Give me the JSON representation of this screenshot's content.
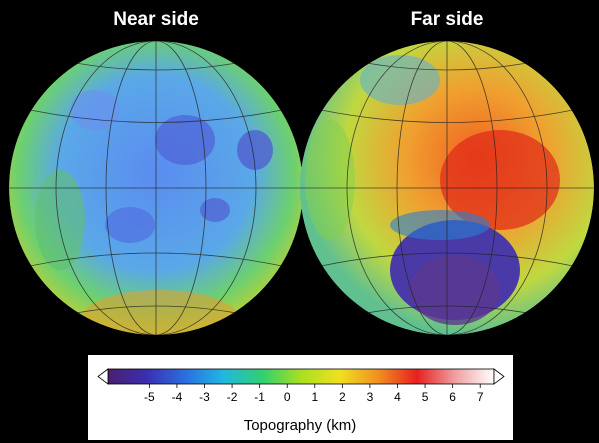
{
  "panels": [
    {
      "title": "Near side"
    },
    {
      "title": "Far side"
    }
  ],
  "colorbar": {
    "label": "Topography (km)",
    "lim": [
      -6.5,
      7.5
    ],
    "ticks": [
      -5,
      -4,
      -3,
      -2,
      -1,
      0,
      1,
      2,
      3,
      4,
      5,
      6,
      7
    ],
    "colors": [
      "#4a1f6e",
      "#3a2fb0",
      "#2a6fe0",
      "#20b8e0",
      "#30d070",
      "#a8e020",
      "#f0e020",
      "#f09020",
      "#e82020",
      "#f0a0a0",
      "#ffffff"
    ]
  }
}
